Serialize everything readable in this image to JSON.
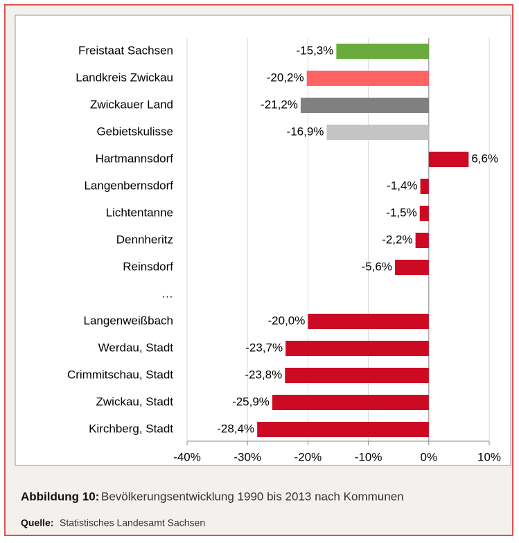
{
  "chart_data": {
    "type": "barh",
    "categories": [
      "Freistaat Sachsen",
      "Landkreis Zwickau",
      "Zwickauer Land",
      "Gebietskulisse",
      "Hartmannsdorf",
      "Langenbernsdorf",
      "Lichtentanne",
      "Dennheritz",
      "Reinsdorf",
      "…",
      "Langenweißbach",
      "Werdau, Stadt",
      "Crimmitschau, Stadt",
      "Zwickau, Stadt",
      "Kirchberg, Stadt"
    ],
    "values": [
      -15.3,
      -20.2,
      -21.2,
      -16.9,
      6.6,
      -1.4,
      -1.5,
      -2.2,
      -5.6,
      null,
      -20.0,
      -23.7,
      -23.8,
      -25.9,
      -28.4
    ],
    "value_labels": [
      "-15,3%",
      "-20,2%",
      "-21,2%",
      "-16,9%",
      "6,6%",
      "-1,4%",
      "-1,5%",
      "-2,2%",
      "-5,6%",
      null,
      "-20,0%",
      "-23,7%",
      "-23,8%",
      "-25,9%",
      "-28,4%"
    ],
    "colors": [
      "#6aab3e",
      "#ff6464",
      "#808080",
      "#c4c4c4",
      "#cc0a24",
      "#cc0a24",
      "#cc0a24",
      "#cc0a24",
      "#cc0a24",
      null,
      "#cc0a24",
      "#cc0a24",
      "#cc0a24",
      "#cc0a24",
      "#cc0a24"
    ],
    "xlim": [
      -40,
      10
    ],
    "xticks": [
      {
        "value": -40,
        "label": "-40%"
      },
      {
        "value": -30,
        "label": "-30%"
      },
      {
        "value": -20,
        "label": "-20%"
      },
      {
        "value": -10,
        "label": "-10%"
      },
      {
        "value": 0,
        "label": "0%"
      },
      {
        "value": 10,
        "label": "10%"
      }
    ],
    "grid": true,
    "caption": {
      "label": "Abbildung 10:",
      "text": "Bevölkerungsentwicklung 1990 bis 2013 nach Kommunen"
    },
    "source": {
      "label": "Quelle:",
      "text": "Statistisches Landesamt Sachsen"
    }
  }
}
